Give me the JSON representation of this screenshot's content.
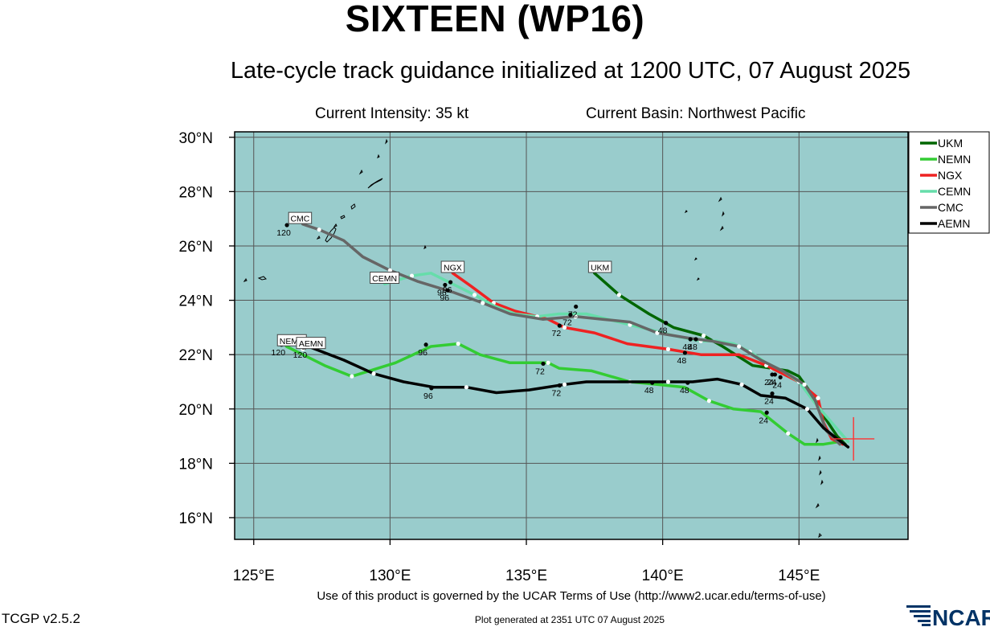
{
  "header": {
    "title": "SIXTEEN (WP16)",
    "subtitle": "Late-cycle track guidance initialized at 1200 UTC, 07 August 2025",
    "intensity": "Current Intensity: 35 kt",
    "basin": "Current Basin: Northwest Pacific"
  },
  "footer": {
    "terms": "Use of this product is governed by the UCAR Terms of Use (http://www2.ucar.edu/terms-of-use)",
    "version": "TCGP v2.5.2",
    "generated": "Plot generated at 2351 UTC   07 August 2025",
    "logo_text": "NCAR"
  },
  "colors": {
    "ocean": "#99cccc",
    "grid": "#555555",
    "current_position": "#ff3333"
  },
  "chart_data": {
    "type": "line",
    "x_axis": {
      "name": "longitude",
      "range": [
        124.3,
        149
      ],
      "ticks": [
        125,
        130,
        135,
        140,
        145
      ],
      "tick_labels": [
        "125°E",
        "130°E",
        "135°E",
        "140°E",
        "145°E"
      ]
    },
    "y_axis": {
      "name": "latitude",
      "range": [
        15.2,
        30.2
      ],
      "ticks": [
        16,
        18,
        20,
        22,
        24,
        26,
        28,
        30
      ],
      "tick_labels": [
        "16°N",
        "18°N",
        "20°N",
        "22°N",
        "24°N",
        "26°N",
        "28°N",
        "30°N"
      ]
    },
    "grid": true,
    "legend_position": "right",
    "current_position": {
      "lon": 147.0,
      "lat": 18.9
    },
    "series": [
      {
        "name": "UKM",
        "color": "#006600",
        "points": [
          [
            146.7,
            18.7
          ],
          [
            146.4,
            19.0
          ],
          [
            145.8,
            19.9
          ],
          [
            145.5,
            20.5
          ],
          [
            145.0,
            21.2
          ],
          [
            144.6,
            21.4
          ],
          [
            144.0,
            21.5
          ],
          [
            143.3,
            21.6
          ],
          [
            142.2,
            22.3
          ],
          [
            141.5,
            22.7
          ],
          [
            140.4,
            23.0
          ],
          [
            139.5,
            23.5
          ],
          [
            138.4,
            24.2
          ],
          [
            137.5,
            25.0
          ]
        ],
        "labels": [
          {
            "text": "48",
            "lon": 140.0,
            "lat": 22.9
          }
        ],
        "end_label": {
          "text": "UKM",
          "lon": 137.7,
          "lat": 25.2
        }
      },
      {
        "name": "NEMN",
        "color": "#33cc33",
        "points": [
          [
            146.5,
            18.8
          ],
          [
            145.9,
            18.7
          ],
          [
            145.2,
            18.7
          ],
          [
            144.6,
            19.1
          ],
          [
            143.6,
            19.9
          ],
          [
            142.6,
            20.0
          ],
          [
            141.7,
            20.3
          ],
          [
            140.8,
            20.8
          ],
          [
            139.8,
            20.9
          ],
          [
            138.8,
            21.0
          ],
          [
            137.4,
            21.4
          ],
          [
            136.2,
            21.5
          ],
          [
            135.8,
            21.7
          ],
          [
            134.4,
            21.7
          ],
          [
            133.3,
            22.0
          ],
          [
            132.5,
            22.4
          ],
          [
            131.5,
            22.3
          ],
          [
            130.2,
            21.7
          ],
          [
            128.6,
            21.2
          ],
          [
            127.6,
            21.6
          ],
          [
            126.2,
            22.3
          ]
        ],
        "labels": [
          {
            "text": "24",
            "lon": 143.7,
            "lat": 19.6
          },
          {
            "text": "48",
            "lon": 139.5,
            "lat": 20.7
          },
          {
            "text": "72",
            "lon": 135.5,
            "lat": 21.4
          },
          {
            "text": "96",
            "lon": 131.2,
            "lat": 22.1
          },
          {
            "text": "120",
            "lon": 125.9,
            "lat": 22.1
          }
        ],
        "end_label": {
          "text": "NEMN",
          "lon": 126.4,
          "lat": 22.5
        }
      },
      {
        "name": "NGX",
        "color": "#ee2222",
        "points": [
          [
            146.6,
            18.7
          ],
          [
            146.2,
            18.9
          ],
          [
            145.9,
            19.5
          ],
          [
            145.7,
            20.4
          ],
          [
            145.0,
            21.0
          ],
          [
            144.4,
            21.3
          ],
          [
            143.8,
            21.6
          ],
          [
            142.8,
            22.0
          ],
          [
            141.4,
            22.0
          ],
          [
            140.2,
            22.2
          ],
          [
            138.7,
            22.4
          ],
          [
            137.5,
            22.8
          ],
          [
            136.4,
            23.0
          ],
          [
            135.8,
            23.3
          ],
          [
            134.6,
            23.6
          ],
          [
            133.8,
            23.9
          ],
          [
            133.0,
            24.5
          ],
          [
            132.3,
            25.0
          ]
        ],
        "labels": [
          {
            "text": "24",
            "lon": 144.2,
            "lat": 20.9
          },
          {
            "text": "48",
            "lon": 140.7,
            "lat": 21.8
          },
          {
            "text": "72",
            "lon": 136.1,
            "lat": 22.8
          },
          {
            "text": "96",
            "lon": 132.0,
            "lat": 24.1
          }
        ],
        "end_label": {
          "text": "NGX",
          "lon": 132.3,
          "lat": 25.2
        }
      },
      {
        "name": "CEMN",
        "color": "#66ddaa",
        "points": [
          [
            146.8,
            18.8
          ],
          [
            146.2,
            19.5
          ],
          [
            145.6,
            20.2
          ],
          [
            145.0,
            21.0
          ],
          [
            144.4,
            21.4
          ],
          [
            143.8,
            21.7
          ],
          [
            143.2,
            22.1
          ],
          [
            142.6,
            22.4
          ],
          [
            142.0,
            22.5
          ],
          [
            141.4,
            22.5
          ],
          [
            140.4,
            22.7
          ],
          [
            139.6,
            22.9
          ],
          [
            138.8,
            23.1
          ],
          [
            137.2,
            23.5
          ],
          [
            136.2,
            23.5
          ],
          [
            135.4,
            23.4
          ],
          [
            134.6,
            23.5
          ],
          [
            133.8,
            23.8
          ],
          [
            133.1,
            24.2
          ],
          [
            132.3,
            24.6
          ],
          [
            131.5,
            25.0
          ],
          [
            130.8,
            24.9
          ],
          [
            129.8,
            24.6
          ]
        ],
        "labels": [
          {
            "text": "24",
            "lon": 144.0,
            "lat": 21.0
          },
          {
            "text": "48",
            "lon": 140.9,
            "lat": 22.3
          },
          {
            "text": "72",
            "lon": 136.7,
            "lat": 23.5
          },
          {
            "text": "96",
            "lon": 131.9,
            "lat": 24.3
          }
        ],
        "end_label": {
          "text": "CEMN",
          "lon": 129.8,
          "lat": 24.8
        }
      },
      {
        "name": "CMC",
        "color": "#666666",
        "points": [
          [
            146.5,
            18.7
          ],
          [
            146.0,
            19.2
          ],
          [
            145.6,
            20.3
          ],
          [
            145.2,
            20.9
          ],
          [
            144.4,
            21.4
          ],
          [
            143.6,
            21.8
          ],
          [
            142.8,
            22.3
          ],
          [
            141.8,
            22.5
          ],
          [
            141.0,
            22.6
          ],
          [
            139.8,
            22.8
          ],
          [
            138.8,
            23.2
          ],
          [
            137.8,
            23.3
          ],
          [
            136.8,
            23.4
          ],
          [
            135.6,
            23.3
          ],
          [
            134.4,
            23.5
          ],
          [
            133.4,
            23.9
          ],
          [
            132.3,
            24.3
          ],
          [
            131.0,
            24.7
          ],
          [
            130.0,
            25.1
          ],
          [
            129.0,
            25.6
          ],
          [
            128.3,
            26.2
          ],
          [
            127.4,
            26.6
          ],
          [
            126.8,
            26.8
          ]
        ],
        "labels": [
          {
            "text": "24",
            "lon": 143.9,
            "lat": 21.0
          },
          {
            "text": "48",
            "lon": 141.1,
            "lat": 22.3
          },
          {
            "text": "72",
            "lon": 136.5,
            "lat": 23.2
          },
          {
            "text": "96",
            "lon": 132.1,
            "lat": 24.4
          },
          {
            "text": "120",
            "lon": 126.1,
            "lat": 26.5
          }
        ],
        "end_label": {
          "text": "CMC",
          "lon": 126.7,
          "lat": 27.0
        }
      },
      {
        "name": "AEMN",
        "color": "#000000",
        "points": [
          [
            146.8,
            18.6
          ],
          [
            146.4,
            18.9
          ],
          [
            145.9,
            19.3
          ],
          [
            145.3,
            20.0
          ],
          [
            144.5,
            20.4
          ],
          [
            143.6,
            20.5
          ],
          [
            142.9,
            20.9
          ],
          [
            142.0,
            21.1
          ],
          [
            141.1,
            21.0
          ],
          [
            140.2,
            21.0
          ],
          [
            139.0,
            21.0
          ],
          [
            137.2,
            21.0
          ],
          [
            136.4,
            20.9
          ],
          [
            135.1,
            20.7
          ],
          [
            133.9,
            20.6
          ],
          [
            132.8,
            20.8
          ],
          [
            131.6,
            20.8
          ],
          [
            130.5,
            21.0
          ],
          [
            129.4,
            21.3
          ],
          [
            128.3,
            21.8
          ],
          [
            127.0,
            22.3
          ],
          [
            126.8,
            22.2
          ]
        ],
        "labels": [
          {
            "text": "24",
            "lon": 143.9,
            "lat": 20.3
          },
          {
            "text": "48",
            "lon": 140.8,
            "lat": 20.7
          },
          {
            "text": "72",
            "lon": 136.1,
            "lat": 20.6
          },
          {
            "text": "96",
            "lon": 131.4,
            "lat": 20.5
          },
          {
            "text": "120",
            "lon": 126.7,
            "lat": 22.0
          }
        ],
        "end_label": {
          "text": "AEMN",
          "lon": 127.1,
          "lat": 22.4
        }
      }
    ]
  }
}
